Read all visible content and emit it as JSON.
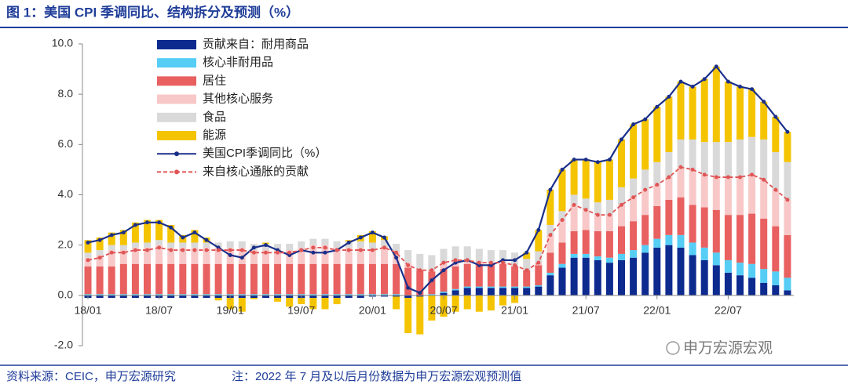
{
  "chart_data": {
    "type": "bar",
    "title": "图 1：美国 CPI 季调同比、结构拆分及预测（%）",
    "source": "资料来源：CEIC，申万宏源研究",
    "note": "注：2022 年 7 月及以后月份数据为申万宏源宏观预测值",
    "watermark": "申万宏源宏观",
    "categories": [
      "18/01",
      null,
      null,
      null,
      null,
      null,
      "18/07",
      null,
      null,
      null,
      null,
      null,
      "19/01",
      null,
      null,
      null,
      null,
      null,
      "19/07",
      null,
      null,
      null,
      null,
      null,
      "20/01",
      null,
      null,
      null,
      null,
      null,
      "20/07",
      null,
      null,
      null,
      null,
      null,
      "21/01",
      null,
      null,
      null,
      null,
      null,
      "21/07",
      null,
      null,
      null,
      null,
      null,
      "22/01",
      null,
      null,
      null,
      null,
      null,
      "22/07",
      null,
      null,
      null,
      null,
      null
    ],
    "ylim": [
      -2,
      10
    ],
    "yticks": [
      {
        "value": -2,
        "label": "-2.0"
      },
      {
        "value": 0,
        "label": "0.0"
      },
      {
        "value": 2,
        "label": "2.0"
      },
      {
        "value": 4,
        "label": "4.0"
      },
      {
        "value": 6,
        "label": "6.0"
      },
      {
        "value": 8,
        "label": "8.0"
      },
      {
        "value": 10,
        "label": "10.0"
      }
    ],
    "series": [
      {
        "name": "贡献来自：耐用商品",
        "color": "#0d2a8f",
        "values": [
          -0.1,
          -0.1,
          -0.1,
          -0.1,
          -0.1,
          -0.1,
          -0.1,
          -0.1,
          -0.1,
          -0.1,
          -0.1,
          -0.1,
          -0.1,
          -0.1,
          -0.1,
          -0.1,
          -0.1,
          -0.1,
          -0.1,
          -0.1,
          -0.1,
          -0.1,
          -0.1,
          -0.1,
          -0.05,
          -0.05,
          -0.05,
          -0.1,
          -0.05,
          0.0,
          0.1,
          0.2,
          0.3,
          0.3,
          0.3,
          0.3,
          0.3,
          0.3,
          0.35,
          0.8,
          1.1,
          1.5,
          1.5,
          1.4,
          1.3,
          1.4,
          1.5,
          1.7,
          1.9,
          2.0,
          1.9,
          1.6,
          1.4,
          1.2,
          0.9,
          0.8,
          0.7,
          0.5,
          0.4,
          0.2
        ]
      },
      {
        "name": "核心非耐用品",
        "color": "#55cdf5",
        "values": [
          0.05,
          0.05,
          0.05,
          0.05,
          0.05,
          0.05,
          0.05,
          0.05,
          0.05,
          0.05,
          0.05,
          0.05,
          0.05,
          0.05,
          0.05,
          0.05,
          0.05,
          0.05,
          0.05,
          0.05,
          0.05,
          0.05,
          0.05,
          0.05,
          0.05,
          0.05,
          0.05,
          0,
          0,
          0.05,
          0.05,
          0.05,
          0.05,
          0.05,
          0.05,
          0.05,
          0.05,
          0.05,
          0.05,
          0.1,
          0.15,
          0.15,
          0.15,
          0.15,
          0.2,
          0.25,
          0.3,
          0.3,
          0.35,
          0.4,
          0.5,
          0.5,
          0.5,
          0.5,
          0.5,
          0.5,
          0.55,
          0.55,
          0.55,
          0.5
        ]
      },
      {
        "name": "居住",
        "color": "#e86060",
        "values": [
          1.1,
          1.1,
          1.1,
          1.2,
          1.2,
          1.2,
          1.2,
          1.2,
          1.2,
          1.2,
          1.2,
          1.2,
          1.2,
          1.2,
          1.2,
          1.2,
          1.2,
          1.2,
          1.2,
          1.2,
          1.2,
          1.2,
          1.2,
          1.2,
          1.2,
          1.2,
          1.2,
          1.1,
          1.0,
          0.9,
          0.9,
          0.9,
          0.9,
          0.9,
          0.9,
          0.9,
          0.8,
          0.65,
          0.8,
          0.8,
          0.85,
          0.9,
          0.95,
          1.0,
          1.05,
          1.1,
          1.15,
          1.2,
          1.3,
          1.4,
          1.5,
          1.5,
          1.6,
          1.7,
          1.8,
          1.9,
          2.0,
          2.0,
          1.8,
          1.7
        ]
      },
      {
        "name": "其他核心服务",
        "color": "#f8c8c8",
        "values": [
          0.35,
          0.45,
          0.65,
          0.55,
          0.65,
          0.65,
          0.75,
          0.65,
          0.65,
          0.65,
          0.65,
          0.65,
          0.65,
          0.65,
          0.55,
          0.55,
          0.55,
          0.55,
          0.65,
          0.75,
          0.75,
          0.65,
          0.65,
          0.65,
          0.6,
          0.7,
          0.5,
          0.2,
          0.05,
          0.05,
          0.25,
          0.25,
          0.15,
          0.05,
          0.05,
          0.05,
          0.05,
          0.0,
          0.1,
          0.7,
          0.9,
          1.05,
          0.8,
          0.65,
          0.65,
          0.85,
          0.95,
          1.0,
          0.85,
          0.9,
          1.2,
          1.4,
          1.3,
          1.3,
          1.5,
          1.5,
          1.55,
          1.55,
          1.45,
          1.4
        ]
      },
      {
        "name": "食品",
        "color": "#d9d9d9",
        "values": [
          0.2,
          0.2,
          0.2,
          0.2,
          0.2,
          0.2,
          0.2,
          0.2,
          0.2,
          0.2,
          0.2,
          0.2,
          0.25,
          0.25,
          0.25,
          0.25,
          0.25,
          0.25,
          0.25,
          0.25,
          0.25,
          0.25,
          0.25,
          0.25,
          0.25,
          0.25,
          0.3,
          0.5,
          0.6,
          0.6,
          0.55,
          0.55,
          0.55,
          0.55,
          0.5,
          0.5,
          0.5,
          0.45,
          0.45,
          0.4,
          0.35,
          0.4,
          0.45,
          0.5,
          0.6,
          0.7,
          0.75,
          0.8,
          0.9,
          1.0,
          1.1,
          1.2,
          1.3,
          1.4,
          1.4,
          1.5,
          1.5,
          1.6,
          1.5,
          1.5
        ]
      },
      {
        "name": "能源",
        "color": "#f5c400",
        "values": [
          0.5,
          0.5,
          0.5,
          0.6,
          0.8,
          0.9,
          0.8,
          0.7,
          0.3,
          0.5,
          0.2,
          -0.1,
          -0.45,
          -0.55,
          -0.05,
          0.05,
          -0.15,
          -0.35,
          -0.25,
          -0.45,
          -0.45,
          -0.25,
          0.05,
          0.25,
          0.45,
          0.15,
          -0.5,
          -1.4,
          -1.5,
          -1.0,
          -0.85,
          -0.65,
          -0.55,
          -0.65,
          -0.6,
          -0.4,
          -0.3,
          0.25,
          0.85,
          1.4,
          1.65,
          1.4,
          1.55,
          1.6,
          1.6,
          1.9,
          2.15,
          2.0,
          2.2,
          2.2,
          2.3,
          2.1,
          2.5,
          3.0,
          2.4,
          2.1,
          1.9,
          1.5,
          1.4,
          1.2
        ]
      },
      {
        "name": "美国CPI季调同比（%）",
        "color": "#1a2f8a",
        "type": "line",
        "values": [
          2.1,
          2.2,
          2.4,
          2.5,
          2.8,
          2.9,
          2.9,
          2.7,
          2.3,
          2.5,
          2.2,
          1.9,
          1.6,
          1.5,
          1.9,
          2.0,
          1.8,
          1.6,
          1.8,
          1.7,
          1.7,
          1.8,
          2.1,
          2.3,
          2.5,
          2.3,
          1.5,
          0.3,
          0.1,
          0.6,
          1.0,
          1.3,
          1.4,
          1.2,
          1.2,
          1.4,
          1.4,
          1.7,
          2.6,
          4.2,
          5.0,
          5.4,
          5.4,
          5.3,
          5.4,
          6.2,
          6.8,
          7.0,
          7.5,
          7.9,
          8.5,
          8.3,
          8.6,
          9.1,
          8.5,
          8.3,
          8.2,
          7.7,
          7.1,
          6.5
        ]
      },
      {
        "name": "来自核心通胀的贡献",
        "color": "#e05555",
        "type": "line",
        "dashed": true,
        "values": [
          1.4,
          1.5,
          1.7,
          1.7,
          1.8,
          1.8,
          1.9,
          1.8,
          1.8,
          1.8,
          1.8,
          1.8,
          1.8,
          1.8,
          1.7,
          1.7,
          1.7,
          1.7,
          1.8,
          1.9,
          1.9,
          1.8,
          1.8,
          1.8,
          1.8,
          1.9,
          1.7,
          1.2,
          1.0,
          1.0,
          1.3,
          1.4,
          1.4,
          1.3,
          1.3,
          1.3,
          1.2,
          1.0,
          1.3,
          2.4,
          3.0,
          3.6,
          3.4,
          3.2,
          3.2,
          3.6,
          3.9,
          4.2,
          4.4,
          4.7,
          5.1,
          5.0,
          4.8,
          4.7,
          4.7,
          4.7,
          4.8,
          4.6,
          4.2,
          3.8
        ]
      }
    ]
  }
}
